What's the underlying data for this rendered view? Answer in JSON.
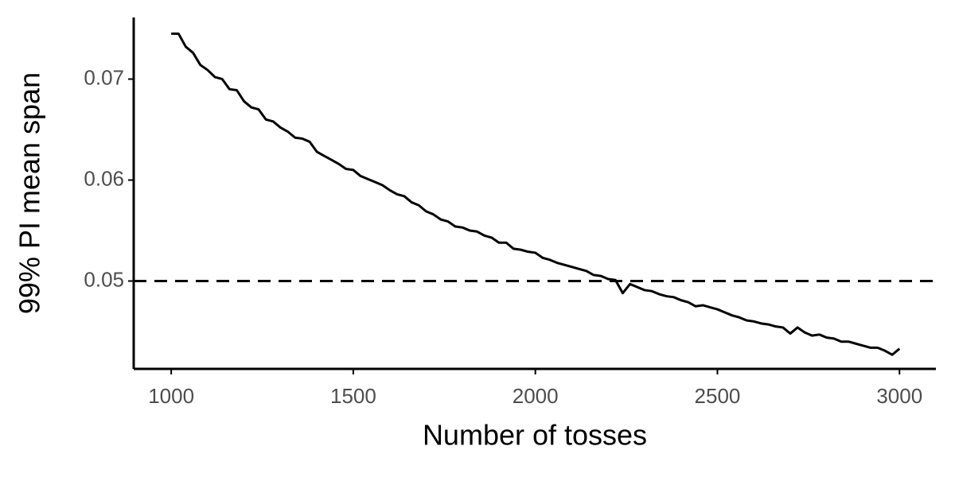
{
  "chart_data": {
    "type": "line",
    "x_label": "Number of tosses",
    "y_label": "99% PI mean span",
    "x": [
      1000,
      1020,
      1040,
      1060,
      1080,
      1100,
      1120,
      1140,
      1160,
      1180,
      1200,
      1220,
      1240,
      1260,
      1280,
      1300,
      1320,
      1340,
      1360,
      1380,
      1400,
      1420,
      1440,
      1460,
      1480,
      1500,
      1520,
      1540,
      1560,
      1580,
      1600,
      1620,
      1640,
      1660,
      1680,
      1700,
      1720,
      1740,
      1760,
      1780,
      1800,
      1820,
      1840,
      1860,
      1880,
      1900,
      1920,
      1940,
      1960,
      1980,
      2000,
      2020,
      2040,
      2060,
      2080,
      2100,
      2120,
      2140,
      2160,
      2180,
      2200,
      2220,
      2240,
      2260,
      2280,
      2300,
      2320,
      2340,
      2360,
      2380,
      2400,
      2420,
      2440,
      2460,
      2480,
      2500,
      2520,
      2540,
      2560,
      2580,
      2600,
      2620,
      2640,
      2660,
      2680,
      2700,
      2720,
      2740,
      2760,
      2780,
      2800,
      2820,
      2840,
      2860,
      2880,
      2900,
      2920,
      2940,
      2960,
      2980,
      3000
    ],
    "series": [
      {
        "name": "mean span",
        "color": "#000000",
        "values": [
          0.0745,
          0.0745,
          0.0732,
          0.0726,
          0.0714,
          0.0709,
          0.0702,
          0.07,
          0.069,
          0.0689,
          0.0678,
          0.0672,
          0.067,
          0.066,
          0.0658,
          0.0652,
          0.0648,
          0.0642,
          0.0641,
          0.0638,
          0.0628,
          0.0624,
          0.062,
          0.0616,
          0.0611,
          0.061,
          0.0604,
          0.0601,
          0.0598,
          0.0595,
          0.059,
          0.0586,
          0.0584,
          0.0578,
          0.0575,
          0.0569,
          0.0566,
          0.0561,
          0.0559,
          0.0554,
          0.0553,
          0.055,
          0.0549,
          0.0545,
          0.0543,
          0.0538,
          0.0538,
          0.0532,
          0.0531,
          0.0529,
          0.0528,
          0.0523,
          0.0521,
          0.0518,
          0.0516,
          0.0514,
          0.0512,
          0.051,
          0.0506,
          0.0505,
          0.0502,
          0.0501,
          0.0488,
          0.0497,
          0.0494,
          0.0491,
          0.049,
          0.0487,
          0.0485,
          0.0484,
          0.0481,
          0.0479,
          0.0475,
          0.0476,
          0.0474,
          0.0472,
          0.0469,
          0.0466,
          0.0464,
          0.0461,
          0.046,
          0.0458,
          0.0457,
          0.0455,
          0.0454,
          0.0448,
          0.0454,
          0.0449,
          0.0446,
          0.0447,
          0.0444,
          0.0443,
          0.044,
          0.044,
          0.0438,
          0.0436,
          0.0434,
          0.0434,
          0.0431,
          0.0427,
          0.0433
        ]
      }
    ],
    "hline": 0.05,
    "xlim": [
      897,
      3100
    ],
    "ylim": [
      0.0413,
      0.0761
    ],
    "xticks": [
      1000,
      1500,
      2000,
      2500,
      3000
    ],
    "yticks": [
      0.05,
      0.06,
      0.07
    ],
    "grid": false
  }
}
